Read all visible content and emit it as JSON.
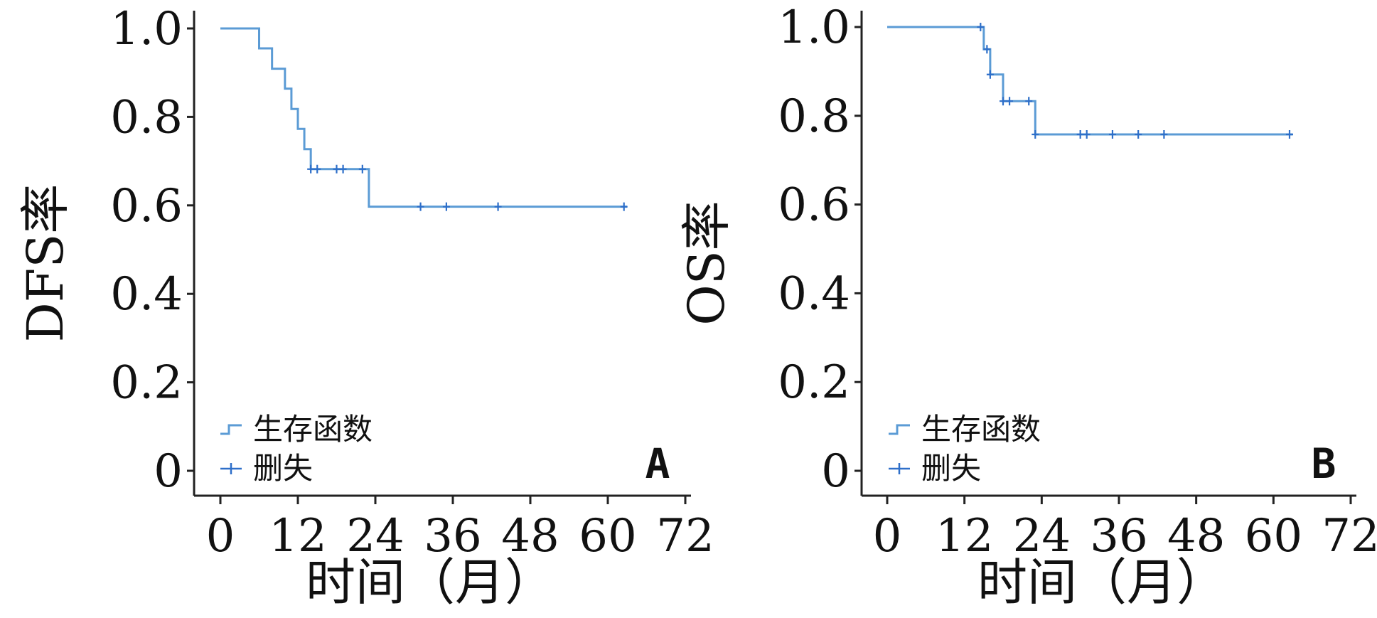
{
  "chart_data": [
    {
      "type": "line",
      "subtype": "kaplan-meier",
      "panel_label": "A",
      "ylabel": "DFS率",
      "xlabel": "时间（月）",
      "xlim": [
        0,
        72
      ],
      "ylim": [
        0,
        1.0
      ],
      "x_ticks": [
        0,
        12,
        24,
        36,
        48,
        60,
        72
      ],
      "y_ticks": [
        0,
        0.2,
        0.4,
        0.6,
        0.8,
        1.0
      ],
      "y_tick_labels": [
        "0",
        "0.2",
        "0.4",
        "0.6",
        "0.8",
        "1.0"
      ],
      "grid": false,
      "legend": {
        "position": "bottom-left",
        "entries": [
          "生存函数",
          "删失"
        ]
      },
      "series": [
        {
          "name": "生存函数",
          "color": "#5b9bd5",
          "steps": [
            [
              0,
              1.0
            ],
            [
              6,
              0.955
            ],
            [
              8,
              0.909
            ],
            [
              10,
              0.864
            ],
            [
              11,
              0.818
            ],
            [
              12,
              0.773
            ],
            [
              13,
              0.727
            ],
            [
              14,
              0.682
            ],
            [
              23,
              0.597
            ],
            [
              63,
              0.597
            ]
          ]
        },
        {
          "name": "删失",
          "color": "#2e6fc9",
          "points": [
            [
              14,
              0.682
            ],
            [
              15,
              0.682
            ],
            [
              18,
              0.682
            ],
            [
              19,
              0.682
            ],
            [
              22,
              0.682
            ],
            [
              31,
              0.597
            ],
            [
              35,
              0.597
            ],
            [
              43,
              0.597
            ],
            [
              62.5,
              0.597
            ]
          ]
        }
      ]
    },
    {
      "type": "line",
      "subtype": "kaplan-meier",
      "panel_label": "B",
      "ylabel": "OS率",
      "xlabel": "时间（月）",
      "xlim": [
        0,
        72
      ],
      "ylim": [
        0,
        1.0
      ],
      "x_ticks": [
        0,
        12,
        24,
        36,
        48,
        60,
        72
      ],
      "y_ticks": [
        0,
        0.2,
        0.4,
        0.6,
        0.8,
        1.0
      ],
      "y_tick_labels": [
        "0",
        "0.2",
        "0.4",
        "0.6",
        "0.8",
        "1.0"
      ],
      "grid": false,
      "legend": {
        "position": "bottom-left",
        "entries": [
          "生存函数",
          "删失"
        ]
      },
      "series": [
        {
          "name": "生存函数",
          "color": "#5b9bd5",
          "steps": [
            [
              0,
              1.0
            ],
            [
              15,
              0.95
            ],
            [
              16,
              0.893
            ],
            [
              18,
              0.833
            ],
            [
              23,
              0.758
            ],
            [
              63,
              0.758
            ]
          ]
        },
        {
          "name": "删失",
          "color": "#2e6fc9",
          "points": [
            [
              14.5,
              1.0
            ],
            [
              15.5,
              0.95
            ],
            [
              16,
              0.893
            ],
            [
              18,
              0.833
            ],
            [
              19,
              0.833
            ],
            [
              22,
              0.833
            ],
            [
              23,
              0.758
            ],
            [
              30,
              0.758
            ],
            [
              31,
              0.758
            ],
            [
              35,
              0.758
            ],
            [
              39,
              0.758
            ],
            [
              43,
              0.758
            ],
            [
              62.5,
              0.758
            ]
          ]
        }
      ]
    }
  ]
}
